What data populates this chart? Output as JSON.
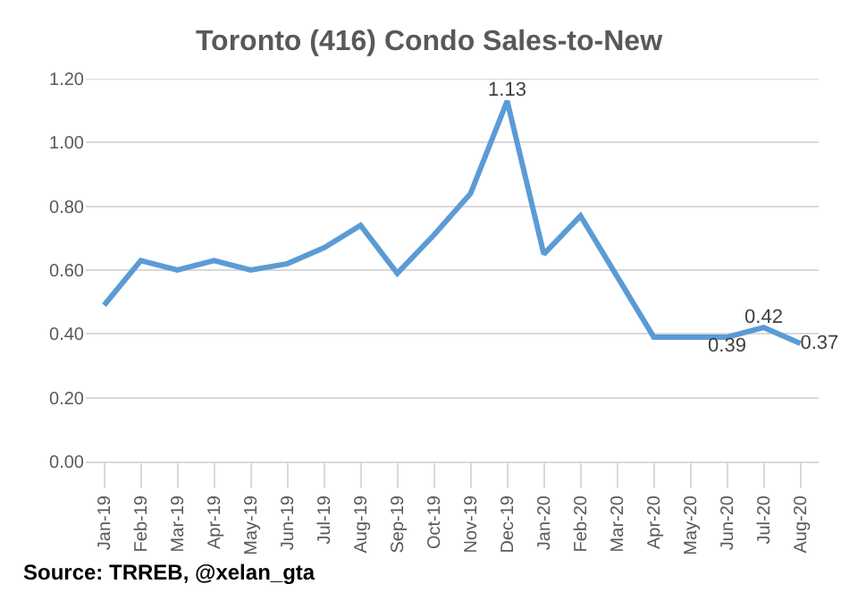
{
  "chart_data": {
    "type": "line",
    "title": "Toronto (416) Condo Sales-to-New",
    "categories": [
      "Jan-19",
      "Feb-19",
      "Mar-19",
      "Apr-19",
      "May-19",
      "Jun-19",
      "Jul-19",
      "Aug-19",
      "Sep-19",
      "Oct-19",
      "Nov-19",
      "Dec-19",
      "Jan-20",
      "Feb-20",
      "Mar-20",
      "Apr-20",
      "May-20",
      "Jun-20",
      "Jul-20",
      "Aug-20"
    ],
    "series": [
      {
        "color": "#5b9bd5",
        "values": [
          0.49,
          0.63,
          0.6,
          0.63,
          0.6,
          0.62,
          0.67,
          0.74,
          0.59,
          0.71,
          0.84,
          1.13,
          0.65,
          0.77,
          0.58,
          0.39,
          0.39,
          0.39,
          0.42,
          0.37
        ],
        "value_labels": [
          null,
          null,
          null,
          null,
          null,
          null,
          null,
          null,
          null,
          null,
          null,
          "1.13",
          null,
          null,
          null,
          null,
          null,
          "0.39",
          "0.42",
          "0.37"
        ]
      }
    ],
    "ylim": [
      0,
      1.2
    ],
    "yticks": [
      "0.00",
      "0.20",
      "0.40",
      "0.60",
      "0.80",
      "1.00",
      "1.20"
    ],
    "grid": "y",
    "marker": "none",
    "line_style": "solid",
    "annotations": [
      "Source: TRREB, @xelan_gta"
    ]
  }
}
